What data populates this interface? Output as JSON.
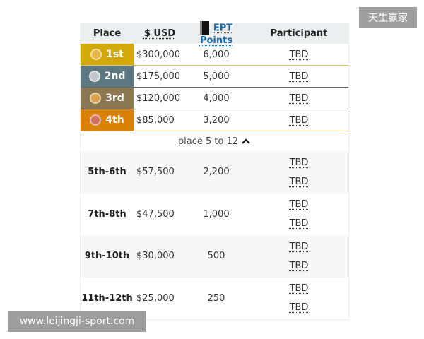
{
  "header": {
    "place": "Place",
    "usd": "$ USD",
    "points": "EPT Points",
    "participant": "Participant"
  },
  "top_places": [
    {
      "place": "1st",
      "usd": "$300,000",
      "points": "6,000",
      "participant": "TBD",
      "color": "#d3a90a",
      "medal": "#e8b84a",
      "line": "#e0c060"
    },
    {
      "place": "2nd",
      "usd": "$175,000",
      "points": "5,000",
      "participant": "TBD",
      "color": "#5d7880",
      "medal": "#c0c8cc",
      "line": "#666"
    },
    {
      "place": "3rd",
      "usd": "$120,000",
      "points": "4,000",
      "participant": "TBD",
      "color": "#8b7752",
      "medal": "#d9a050",
      "line": "#666"
    },
    {
      "place": "4th",
      "usd": "$85,000",
      "points": "3,200",
      "participant": "TBD",
      "color": "#d98206",
      "medal": "#d07060",
      "line": "#e0b060"
    }
  ],
  "toggle": {
    "label": "place 5 to 12",
    "icon": "chevron-up-icon"
  },
  "groups": [
    {
      "place": "5th-6th",
      "usd": "$57,500",
      "points": "2,200",
      "participants": [
        "TBD",
        "TBD"
      ]
    },
    {
      "place": "7th-8th",
      "usd": "$47,500",
      "points": "1,000",
      "participants": [
        "TBD",
        "TBD"
      ]
    },
    {
      "place": "9th-10th",
      "usd": "$30,000",
      "points": "500",
      "participants": [
        "TBD",
        "TBD"
      ]
    },
    {
      "place": "11th-12th",
      "usd": "$25,000",
      "points": "250",
      "participants": [
        "TBD",
        "TBD"
      ]
    }
  ],
  "watermarks": {
    "top": "天生赢家",
    "bottom": "www.leijingji-sport.com"
  }
}
